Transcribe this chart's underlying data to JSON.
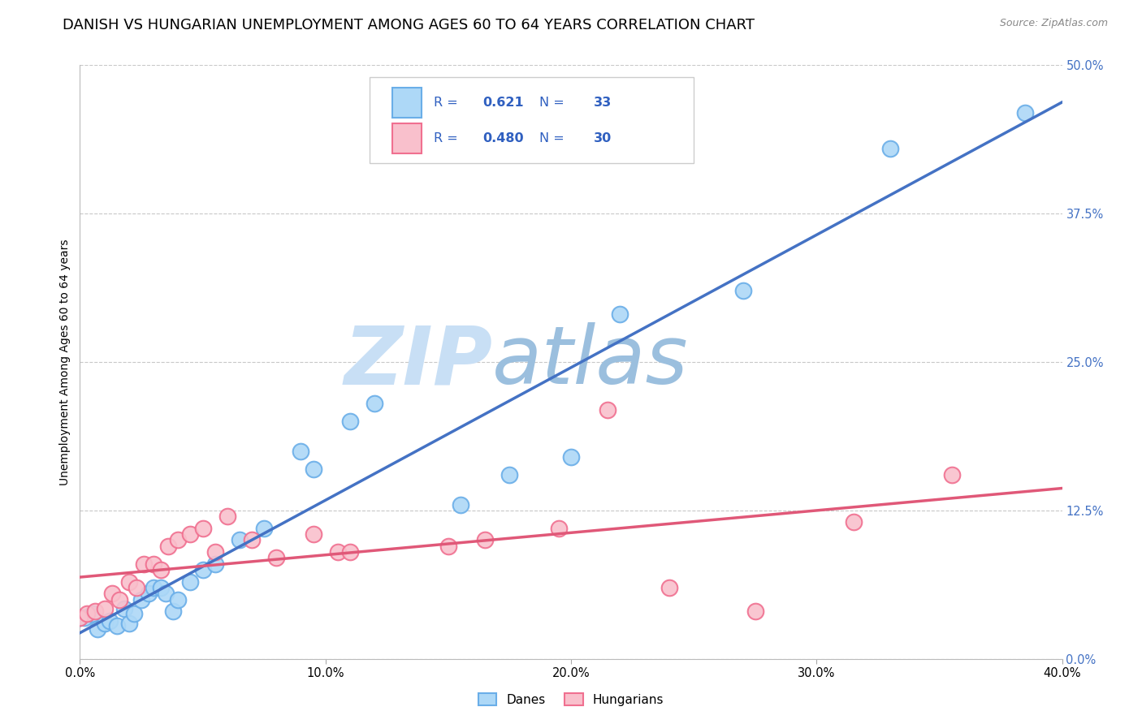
{
  "title": "DANISH VS HUNGARIAN UNEMPLOYMENT AMONG AGES 60 TO 64 YEARS CORRELATION CHART",
  "source": "Source: ZipAtlas.com",
  "ylabel": "Unemployment Among Ages 60 to 64 years",
  "xlim": [
    0.0,
    0.4
  ],
  "ylim": [
    0.0,
    0.5
  ],
  "legend_label1": "Danes",
  "legend_label2": "Hungarians",
  "R1": "0.621",
  "N1": "33",
  "R2": "0.480",
  "N2": "30",
  "danes_x": [
    0.0,
    0.002,
    0.005,
    0.007,
    0.01,
    0.012,
    0.015,
    0.018,
    0.02,
    0.022,
    0.025,
    0.028,
    0.03,
    0.033,
    0.035,
    0.038,
    0.04,
    0.045,
    0.05,
    0.055,
    0.065,
    0.075,
    0.09,
    0.095,
    0.11,
    0.12,
    0.155,
    0.175,
    0.2,
    0.22,
    0.27,
    0.33,
    0.385
  ],
  "danes_y": [
    0.035,
    0.035,
    0.038,
    0.025,
    0.03,
    0.032,
    0.028,
    0.042,
    0.03,
    0.038,
    0.05,
    0.055,
    0.06,
    0.06,
    0.055,
    0.04,
    0.05,
    0.065,
    0.075,
    0.08,
    0.1,
    0.11,
    0.175,
    0.16,
    0.2,
    0.215,
    0.13,
    0.155,
    0.17,
    0.29,
    0.31,
    0.43,
    0.46
  ],
  "hungarians_x": [
    0.0,
    0.003,
    0.006,
    0.01,
    0.013,
    0.016,
    0.02,
    0.023,
    0.026,
    0.03,
    0.033,
    0.036,
    0.04,
    0.045,
    0.05,
    0.055,
    0.06,
    0.07,
    0.08,
    0.095,
    0.105,
    0.11,
    0.15,
    0.165,
    0.195,
    0.215,
    0.24,
    0.275,
    0.315,
    0.355
  ],
  "hungarians_y": [
    0.035,
    0.038,
    0.04,
    0.042,
    0.055,
    0.05,
    0.065,
    0.06,
    0.08,
    0.08,
    0.075,
    0.095,
    0.1,
    0.105,
    0.11,
    0.09,
    0.12,
    0.1,
    0.085,
    0.105,
    0.09,
    0.09,
    0.095,
    0.1,
    0.11,
    0.21,
    0.06,
    0.04,
    0.115,
    0.155
  ],
  "danes_color": "#add8f7",
  "danes_edge": "#6aaee8",
  "hungarians_color": "#f9c0cc",
  "hungarians_edge": "#f07090",
  "line_danes_color": "#4472c4",
  "line_hungarians_color": "#e05878",
  "legend_text_color": "#3060c0",
  "watermark_zip_color": "#c8dff5",
  "watermark_atlas_color": "#9bbfde",
  "background_color": "#ffffff",
  "title_fontsize": 13,
  "axis_label_fontsize": 10,
  "tick_fontsize": 10.5
}
